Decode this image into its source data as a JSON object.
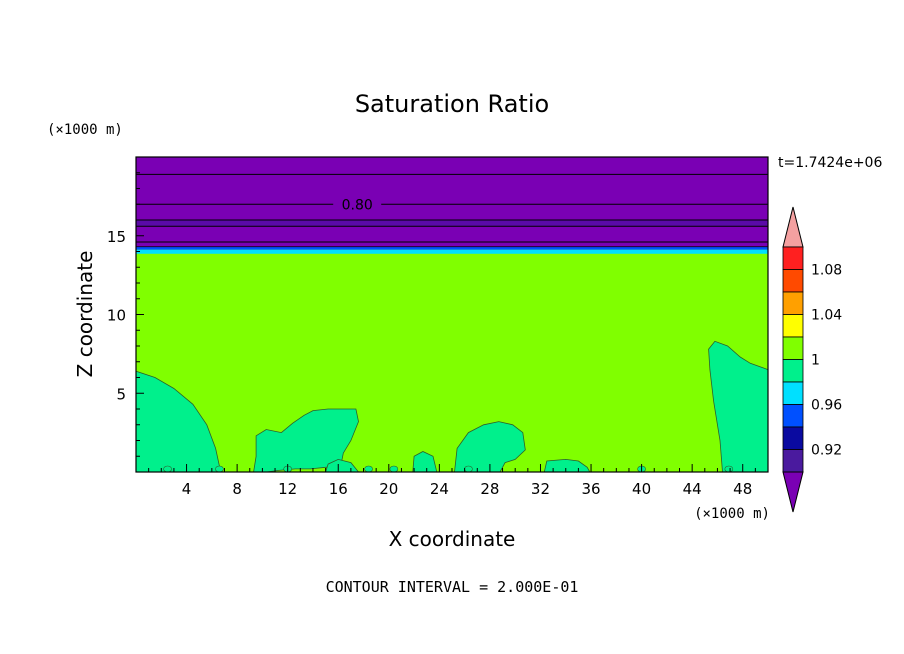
{
  "chart_data": {
    "type": "contour",
    "title": "Saturation Ratio",
    "xlabel": "X coordinate",
    "ylabel": "Z coordinate",
    "x_unit": "(×1000 m)",
    "y_unit": "(×1000 m)",
    "time_label": "t=1.7424e+06",
    "footer": "CONTOUR INTERVAL = 2.000E-01",
    "xlim": [
      0,
      50
    ],
    "ylim": [
      0,
      20
    ],
    "xticks": [
      4,
      8,
      12,
      16,
      20,
      24,
      28,
      32,
      36,
      40,
      44,
      48
    ],
    "yticks": [
      5,
      10,
      15
    ],
    "contour_label": "0.80",
    "contour_label_x": 17.5,
    "contour_label_z": 17.0,
    "colorbar": {
      "tick_labels": [
        "1.08",
        "1.04",
        "1",
        "0.96",
        "0.92"
      ],
      "levels": [
        0.9,
        0.92,
        0.94,
        0.96,
        0.98,
        1.0,
        1.02,
        1.04,
        1.06,
        1.08,
        1.1
      ],
      "colors": [
        "#7a00b4",
        "#4a1a9e",
        "#0a0aa0",
        "#0050ff",
        "#00e0ff",
        "#00f08c",
        "#80ff00",
        "#ffff00",
        "#ffa000",
        "#ff4a00",
        "#ff2020",
        "#f4a0a0"
      ]
    },
    "regions": [
      {
        "name": "upper dry layer",
        "z_min": 14.3,
        "z_max": 20,
        "value_class": "<0.90"
      },
      {
        "name": "moist layer",
        "z_min": 0,
        "z_max": 14.3,
        "value_class": "1.00-1.02"
      },
      {
        "name": "near-saturated boundary",
        "z_min": 0,
        "z_max": 6.5,
        "value_class": "0.98-1.00"
      }
    ],
    "colors": {
      "dry": "#7a00b4",
      "dry_band": "#5a0aa8",
      "cyan": "#00e0ff",
      "blue": "#0050ff",
      "moist": "#80ff00",
      "near_sat": "#00f08c"
    }
  }
}
